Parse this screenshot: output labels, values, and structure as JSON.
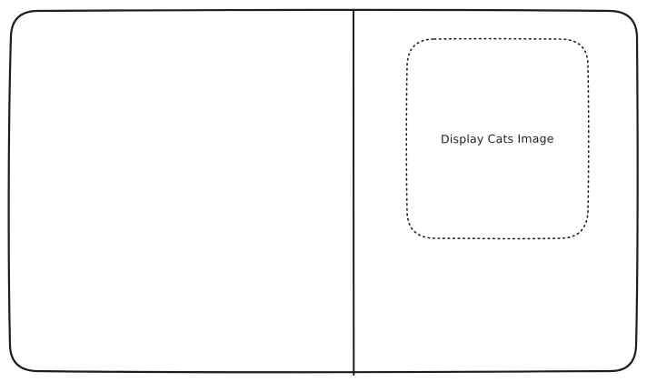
{
  "placeholder": {
    "label": "Display Cats Image"
  },
  "colors": {
    "stroke": "#1e1e1e",
    "background": "#ffffff"
  }
}
